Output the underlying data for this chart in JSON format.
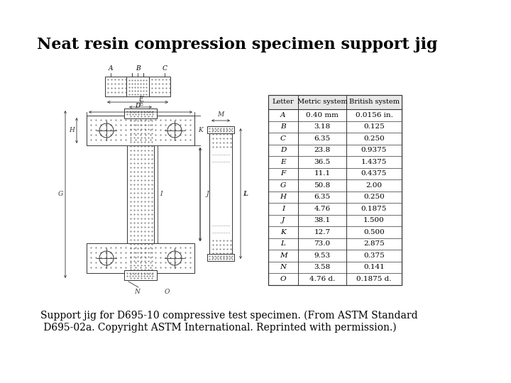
{
  "title": "Neat resin compression specimen support jig",
  "title_fontsize": 16,
  "title_weight": "bold",
  "caption_line1": "Support jig for D695-10 compressive test specimen. (From ASTM Standard",
  "caption_line2": " D695-02a. Copyright ASTM International. Reprinted with permission.)",
  "caption_fontsize": 10,
  "table_headers": [
    "Letter",
    "Metric system",
    "British system"
  ],
  "table_data": [
    [
      "A",
      "0.40 mm",
      "0.0156 in."
    ],
    [
      "B",
      "3.18",
      "0.125"
    ],
    [
      "C",
      "6.35",
      "0.250"
    ],
    [
      "D",
      "23.8",
      "0.9375"
    ],
    [
      "E",
      "36.5",
      "1.4375"
    ],
    [
      "F",
      "11.1",
      "0.4375"
    ],
    [
      "G",
      "50.8",
      "2.00"
    ],
    [
      "H",
      "6.35",
      "0.250"
    ],
    [
      "I",
      "4.76",
      "0.1875"
    ],
    [
      "J",
      "38.1",
      "1.500"
    ],
    [
      "K",
      "12.7",
      "0.500"
    ],
    [
      "L",
      "73.0",
      "2.875"
    ],
    [
      "M",
      "9.53",
      "0.375"
    ],
    [
      "N",
      "3.58",
      "0.141"
    ],
    [
      "O",
      "4.76 d.",
      "0.1875 d."
    ]
  ],
  "bg_color": "#ffffff"
}
